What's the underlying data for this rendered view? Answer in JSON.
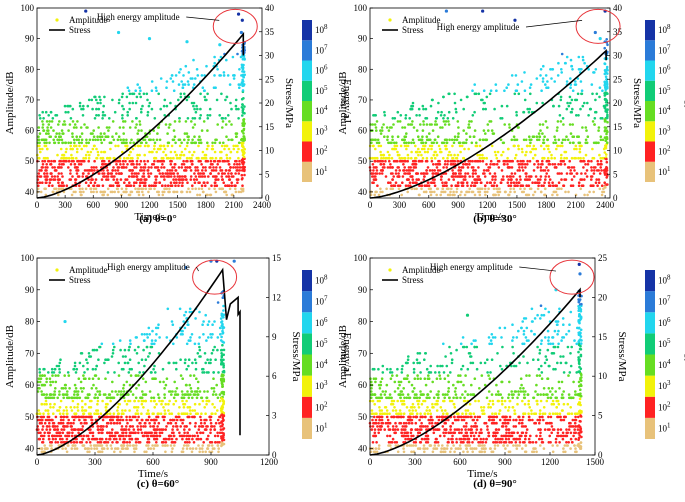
{
  "common": {
    "x_axis_label": "Time/s",
    "y_axis_label": "Amplitude/dB",
    "stress_axis_label": "Stress/MPa",
    "energy_axis_label": "Energy/aJ",
    "legend_amplitude": "Amplitude",
    "legend_stress": "Stress",
    "annotation_text": "High energy amplitude",
    "energy_bins": [
      "10^1",
      "10^2",
      "10^3",
      "10^4",
      "10^5",
      "10^6",
      "10^7",
      "10^8"
    ],
    "colors": {
      "energy_10_1": "#e8c27a",
      "energy_10_2": "#ff2222",
      "energy_10_3": "#f2f20a",
      "energy_10_4": "#66dd22",
      "energy_10_5": "#11cc77",
      "energy_10_6": "#22d6ee",
      "energy_10_7": "#2b7bd8",
      "energy_10_8": "#1533a6",
      "stress_line": "#000000",
      "circle": "#e8343a"
    }
  },
  "chart_data": [
    {
      "type": "scatter",
      "caption": "(a) θ=0°",
      "xlabel": "Time/s",
      "ylabel": "Amplitude/dB",
      "y2label": "Stress/MPa",
      "xlim": [
        0,
        2400
      ],
      "xticks": [
        "0",
        "300",
        "600",
        "900",
        "1200",
        "1500",
        "1800",
        "2100",
        "2400"
      ],
      "ylim": [
        38,
        100
      ],
      "yticks": [
        "40",
        "50",
        "60",
        "70",
        "80",
        "90",
        "100"
      ],
      "y2lim": [
        0,
        40
      ],
      "y2ticks": [
        "0",
        "5",
        "10",
        "15",
        "20",
        "25",
        "30",
        "35",
        "40"
      ],
      "energy_legend": [
        "10^1",
        "10^2",
        "10^3",
        "10^4",
        "10^5",
        "10^6",
        "10^7",
        "10^8"
      ],
      "legend": [
        "Amplitude",
        "Stress"
      ],
      "annotation": "High energy amplitude",
      "stress_peak_time": 2200,
      "stress_peak": 34.5,
      "stress_end": 30,
      "sample_amplitudes": [
        {
          "t": 520,
          "a": 99,
          "e": 8
        },
        {
          "t": 2150,
          "a": 98,
          "e": 8
        },
        {
          "t": 2190,
          "a": 96,
          "e": 8
        },
        {
          "t": 870,
          "a": 92,
          "e": 6
        },
        {
          "t": 1200,
          "a": 90,
          "e": 6
        },
        {
          "t": 1600,
          "a": 89,
          "e": 6
        },
        {
          "t": 1950,
          "a": 88,
          "e": 6
        },
        {
          "t": 2180,
          "a": 92,
          "e": 7
        }
      ]
    },
    {
      "type": "scatter",
      "caption": "(b) θ=30°",
      "xlabel": "Time/s",
      "ylabel": "Amplitude/dB",
      "y2label": "Stress/MPa",
      "xlim": [
        0,
        2450
      ],
      "xticks": [
        "0",
        "300",
        "600",
        "900",
        "1200",
        "1500",
        "1800",
        "2100",
        "2400"
      ],
      "ylim": [
        38,
        100
      ],
      "yticks": [
        "40",
        "50",
        "60",
        "70",
        "80",
        "90",
        "100"
      ],
      "y2lim": [
        0,
        40
      ],
      "y2ticks": [
        "0",
        "5",
        "10",
        "15",
        "20",
        "25",
        "30",
        "35",
        "40"
      ],
      "energy_legend": [
        "10^1",
        "10^2",
        "10^3",
        "10^4",
        "10^5",
        "10^6",
        "10^7",
        "10^8"
      ],
      "legend": [
        "Amplitude",
        "Stress"
      ],
      "annotation": "High energy amplitude",
      "stress_peak_time": 2410,
      "stress_peak": 31,
      "stress_end": 29,
      "sample_amplitudes": [
        {
          "t": 780,
          "a": 99,
          "e": 7
        },
        {
          "t": 1150,
          "a": 99,
          "e": 8
        },
        {
          "t": 1480,
          "a": 96,
          "e": 8
        },
        {
          "t": 2400,
          "a": 99,
          "e": 8
        },
        {
          "t": 2350,
          "a": 90,
          "e": 6
        },
        {
          "t": 2300,
          "a": 92,
          "e": 7
        }
      ]
    },
    {
      "type": "scatter",
      "caption": "(c) θ=60°",
      "xlabel": "Time/s",
      "ylabel": "Amplitude/dB",
      "y2label": "Stress/MPa",
      "xlim": [
        0,
        1200
      ],
      "xticks": [
        "0",
        "300",
        "600",
        "900",
        "1200"
      ],
      "ylim": [
        38,
        100
      ],
      "yticks": [
        "40",
        "50",
        "60",
        "70",
        "80",
        "90",
        "100"
      ],
      "y2lim": [
        0,
        15
      ],
      "y2ticks": [
        "0",
        "3",
        "6",
        "9",
        "12",
        "15"
      ],
      "energy_legend": [
        "10^1",
        "10^2",
        "10^3",
        "10^4",
        "10^5",
        "10^6",
        "10^7",
        "10^8"
      ],
      "legend": [
        "Amplitude",
        "Stress"
      ],
      "annotation": "High energy amplitude",
      "stress_peak_time": 960,
      "stress_peak": 14.1,
      "stress_end": 1.5,
      "sample_amplitudes": [
        {
          "t": 770,
          "a": 97,
          "e": 7
        },
        {
          "t": 900,
          "a": 99,
          "e": 7
        },
        {
          "t": 930,
          "a": 99,
          "e": 8
        },
        {
          "t": 1020,
          "a": 99,
          "e": 7
        },
        {
          "t": 145,
          "a": 80,
          "e": 6
        }
      ]
    },
    {
      "type": "scatter",
      "caption": "(d) θ=90°",
      "xlabel": "Time/s",
      "ylabel": "Amplitude/dB",
      "y2label": "Stress/MPa",
      "xlim": [
        0,
        1500
      ],
      "xticks": [
        "0",
        "300",
        "600",
        "900",
        "1200",
        "1500"
      ],
      "ylim": [
        38,
        100
      ],
      "yticks": [
        "40",
        "50",
        "60",
        "70",
        "80",
        "90",
        "100"
      ],
      "y2lim": [
        0,
        25
      ],
      "y2ticks": [
        "0",
        "5",
        "10",
        "15",
        "20",
        "25"
      ],
      "energy_legend": [
        "10^1",
        "10^2",
        "10^3",
        "10^4",
        "10^5",
        "10^6",
        "10^7",
        "10^8"
      ],
      "legend": [
        "Amplitude",
        "Stress"
      ],
      "annotation": "High energy amplitude",
      "stress_peak_time": 1400,
      "stress_peak": 21,
      "stress_end": 20,
      "sample_amplitudes": [
        {
          "t": 1395,
          "a": 98,
          "e": 8
        },
        {
          "t": 1400,
          "a": 95,
          "e": 7
        },
        {
          "t": 1240,
          "a": 90,
          "e": 6
        },
        {
          "t": 650,
          "a": 82,
          "e": 5
        }
      ]
    }
  ]
}
